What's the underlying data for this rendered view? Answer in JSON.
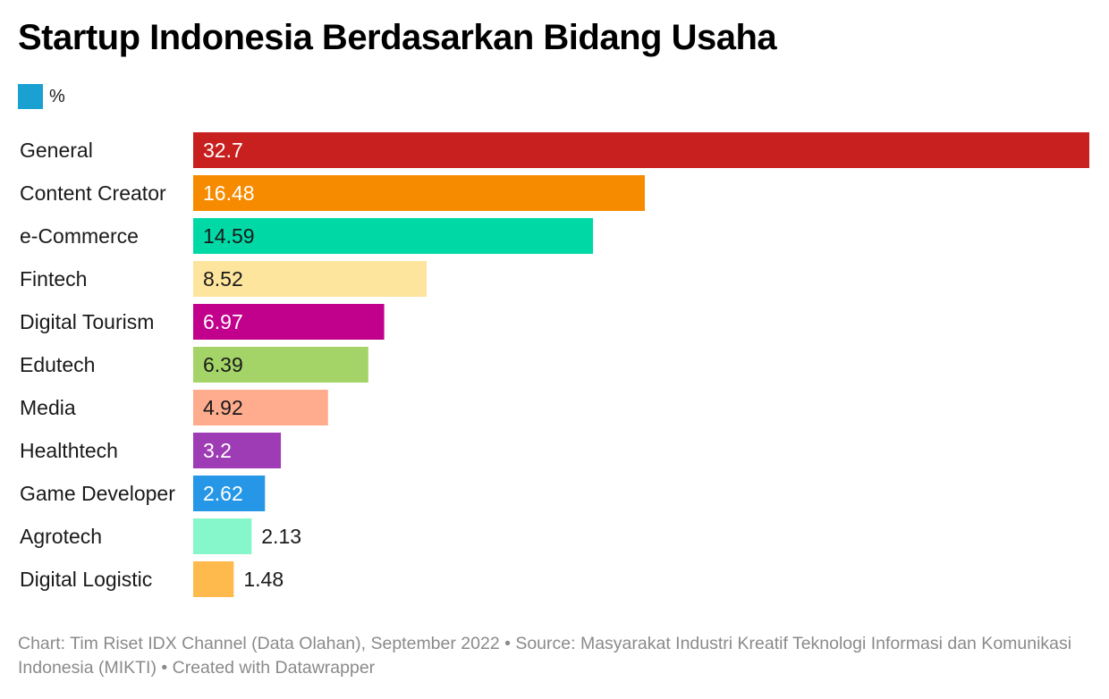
{
  "colors": {
    "legend_swatch": "#1ba1d1",
    "bars": [
      "#c8201f",
      "#f78b00",
      "#00d9a6",
      "#fee59e",
      "#c1008b",
      "#a4d468",
      "#feab8e",
      "#9e3cb5",
      "#2697e6",
      "#86f6cb",
      "#feba4c"
    ],
    "label_colors": [
      "#ffffff",
      "#ffffff",
      "#1a1a1a",
      "#1a1a1a",
      "#ffffff",
      "#1a1a1a",
      "#1a1a1a",
      "#ffffff",
      "#ffffff",
      "#1a1a1a",
      "#1a1a1a"
    ]
  },
  "footer": {
    "text": "Chart: Tim Riset IDX Channel (Data Olahan), September 2022 • Source: Masyarakat Industri Kreatif Teknologi Informasi dan Komunikasi Indonesia (MIKTI) • Created with Datawrapper"
  },
  "chart_data": {
    "type": "bar",
    "orientation": "horizontal",
    "title": "Startup Indonesia Berdasarkan Bidang Usaha",
    "legend": [
      "%"
    ],
    "categories": [
      "General",
      "Content Creator",
      "e-Commerce",
      "Fintech",
      "Digital Tourism",
      "Edutech",
      "Media",
      "Healthtech",
      "Game Developer",
      "Agrotech",
      "Digital Logistic"
    ],
    "values": [
      32.7,
      16.48,
      14.59,
      8.52,
      6.97,
      6.39,
      4.92,
      3.2,
      2.62,
      2.13,
      1.48
    ],
    "value_labels": [
      "32.7",
      "16.48",
      "14.59",
      "8.52",
      "6.97",
      "6.39",
      "4.92",
      "3.2",
      "2.62",
      "2.13",
      "1.48"
    ],
    "xlim": [
      0,
      32.7
    ],
    "grid": false,
    "legend_position": "top-left"
  }
}
